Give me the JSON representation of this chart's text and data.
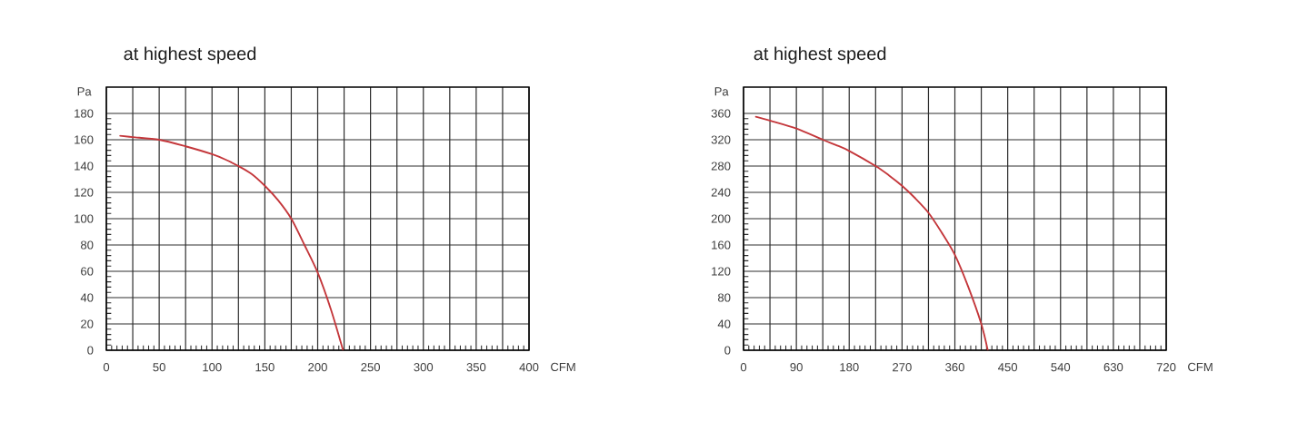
{
  "chart_data": [
    {
      "type": "line",
      "title": "at highest speed",
      "xlabel": "CFM",
      "ylabel": "Pa",
      "xlim": [
        0,
        400
      ],
      "ylim": [
        0,
        200
      ],
      "xticks": [
        0,
        {
          "value": 25,
          "label": null
        },
        50,
        {
          "value": 75,
          "label": null
        },
        100,
        {
          "value": 125,
          "label": null
        },
        150,
        {
          "value": 175,
          "label": null
        },
        200,
        {
          "value": 225,
          "label": null
        },
        250,
        {
          "value": 275,
          "label": null
        },
        300,
        {
          "value": 325,
          "label": null
        },
        350,
        {
          "value": 375,
          "label": null
        },
        400
      ],
      "yticks": [
        0,
        20,
        40,
        60,
        80,
        100,
        120,
        140,
        160,
        180
      ],
      "grid": true,
      "series": [
        {
          "color": "#c4373b",
          "x": [
            13,
            25,
            50,
            75,
            100,
            112.5,
            125,
            137.5,
            150,
            162.5,
            175,
            187.5,
            200,
            212.5,
            224
          ],
          "values": [
            163,
            162,
            160,
            155,
            149,
            145,
            140,
            134,
            125,
            114,
            100,
            80,
            59,
            31,
            0
          ]
        }
      ]
    },
    {
      "type": "line",
      "title": "at highest speed",
      "xlabel": "CFM",
      "ylabel": "Pa",
      "xlim": [
        0,
        720
      ],
      "ylim": [
        0,
        400
      ],
      "xticks": [
        0,
        {
          "value": 45,
          "label": null
        },
        90,
        {
          "value": 135,
          "label": null
        },
        180,
        {
          "value": 225,
          "label": null
        },
        270,
        {
          "value": 315,
          "label": null
        },
        360,
        {
          "value": 405,
          "label": null
        },
        450,
        {
          "value": 495,
          "label": null
        },
        540,
        {
          "value": 585,
          "label": null
        },
        630,
        {
          "value": 675,
          "label": null
        },
        720
      ],
      "yticks": [
        0,
        40,
        80,
        120,
        160,
        200,
        240,
        280,
        320,
        360
      ],
      "grid": true,
      "series": [
        {
          "color": "#c4373b",
          "x": [
            21,
            45,
            90,
            135,
            157.5,
            180,
            225,
            247.5,
            270,
            292.5,
            315,
            337.5,
            360,
            382.5,
            405,
            416
          ],
          "values": [
            355,
            349,
            337,
            320,
            312,
            303,
            280,
            266,
            250,
            231,
            209,
            179,
            145,
            97,
            40,
            0
          ]
        }
      ]
    }
  ]
}
